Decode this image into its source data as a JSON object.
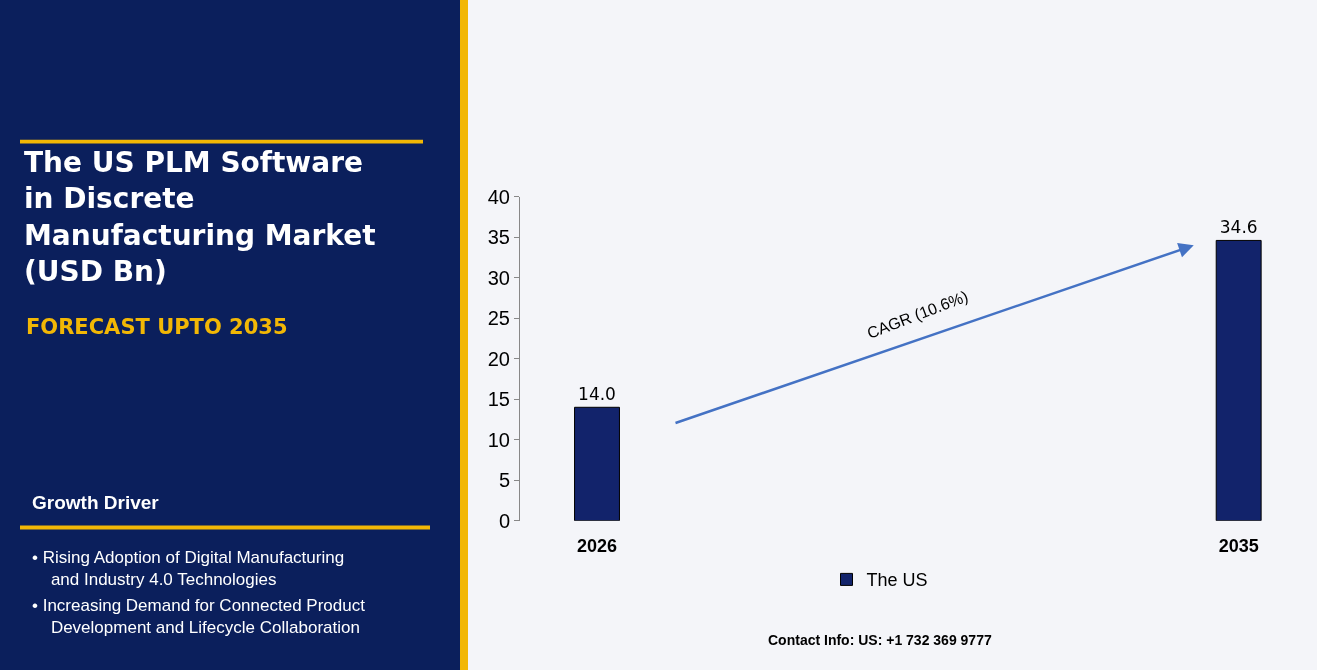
{
  "chart_data": {
    "type": "bar",
    "title": "The US PLM Software in Discrete Manufacturing Market (USD Bn)",
    "subtitle": "FORECAST UPTO 2035",
    "categories": [
      "2026",
      "2035"
    ],
    "series": [
      {
        "name": "The US",
        "color": "#12236b",
        "values": [
          14.0,
          34.6
        ],
        "value_labels": [
          "14.0",
          "34.6"
        ]
      }
    ],
    "ylim": [
      0,
      40
    ],
    "yticks": [
      0,
      5,
      10,
      15,
      20,
      25,
      30,
      35,
      40
    ],
    "grid": false,
    "legend": "bottom",
    "annotations": [
      "CAGR (10.6%)",
      "Growth Driver",
      "• Rising Adoption of Digital Manufacturing and Industry 4.0 Technologies",
      "• Increasing Demand for Connected Product Development and Lifecycle Collaboration",
      "Contact Info: US: +1 732 369 9777"
    ]
  }
}
